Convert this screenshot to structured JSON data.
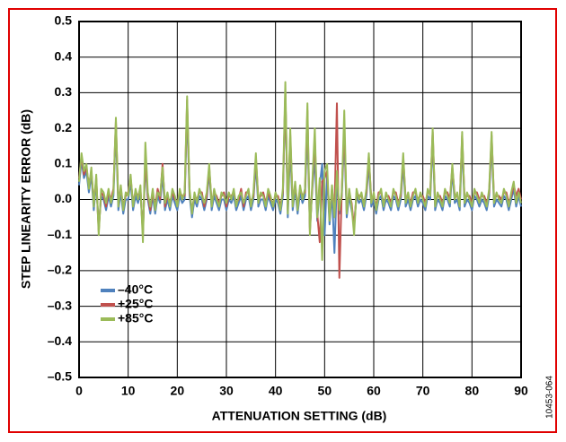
{
  "chart_data": {
    "type": "line",
    "x_label": "ATTENUATION SETTING (dB)",
    "y_label": "STEP LINEARITY ERROR (dB)",
    "figure_id": "10453-064",
    "xlim": [
      0,
      90
    ],
    "xticks": [
      0,
      10,
      20,
      30,
      40,
      50,
      60,
      70,
      80,
      90
    ],
    "ylim": [
      -0.5,
      0.5
    ],
    "yticks": [
      {
        "value": -0.5,
        "label": "–0.5"
      },
      {
        "value": -0.4,
        "label": "–0.4"
      },
      {
        "value": -0.3,
        "label": "–0.3"
      },
      {
        "value": -0.2,
        "label": "–0.2"
      },
      {
        "value": -0.1,
        "label": "–0.1"
      },
      {
        "value": 0,
        "label": "0.0"
      },
      0.1,
      0.2,
      0.3,
      0.4,
      0.5
    ],
    "grid": true,
    "legend": "lower-left",
    "x": [
      0,
      0.5,
      1,
      1.5,
      2,
      2.5,
      3,
      3.5,
      4,
      4.5,
      5,
      5.5,
      6,
      6.5,
      7,
      7.5,
      8,
      8.5,
      9,
      9.5,
      10,
      10.5,
      11,
      11.5,
      12,
      12.5,
      13,
      13.5,
      14,
      14.5,
      15,
      15.5,
      16,
      16.5,
      17,
      17.5,
      18,
      18.5,
      19,
      19.5,
      20,
      20.5,
      21,
      21.5,
      22,
      22.5,
      23,
      23.5,
      24,
      24.5,
      25,
      25.5,
      26,
      26.5,
      27,
      27.5,
      28,
      28.5,
      29,
      29.5,
      30,
      30.5,
      31,
      31.5,
      32,
      32.5,
      33,
      33.5,
      34,
      34.5,
      35,
      35.5,
      36,
      36.5,
      37,
      37.5,
      38,
      38.5,
      39,
      39.5,
      40,
      40.5,
      41,
      41.5,
      42,
      42.5,
      43,
      43.5,
      44,
      44.5,
      45,
      45.5,
      46,
      46.5,
      47,
      47.5,
      48,
      48.5,
      49,
      49.5,
      50,
      50.5,
      51,
      51.5,
      52,
      52.5,
      53,
      53.5,
      54,
      54.5,
      55,
      55.5,
      56,
      56.5,
      57,
      57.5,
      58,
      58.5,
      59,
      59.5,
      60,
      60.5,
      61,
      61.5,
      62,
      62.5,
      63,
      63.5,
      64,
      64.5,
      65,
      65.5,
      66,
      66.5,
      67,
      67.5,
      68,
      68.5,
      69,
      69.5,
      70,
      70.5,
      71,
      71.5,
      72,
      72.5,
      73,
      73.5,
      74,
      74.5,
      75,
      75.5,
      76,
      76.5,
      77,
      77.5,
      78,
      78.5,
      79,
      79.5,
      80,
      80.5,
      81,
      81.5,
      82,
      82.5,
      83,
      83.5,
      84,
      84.5,
      85,
      85.5,
      86,
      86.5,
      87,
      87.5,
      88,
      88.5,
      89,
      89.5,
      90
    ],
    "series": [
      {
        "name": "–40°C",
        "color": "#4f81bd",
        "values": [
          0.04,
          0.11,
          0.06,
          0.08,
          0.02,
          0.07,
          -0.03,
          0.05,
          -0.08,
          0.01,
          0,
          -0.03,
          0.01,
          -0.02,
          0.01,
          0.2,
          -0.03,
          0.02,
          -0.04,
          0,
          0,
          0.05,
          -0.03,
          0.01,
          -0.01,
          0.02,
          -0.09,
          0.1,
          0,
          -0.04,
          0.01,
          -0.04,
          0.01,
          -0.01,
          0.07,
          -0.03,
          0,
          -0.03,
          0.01,
          -0.01,
          -0.03,
          0.01,
          -0.01,
          0,
          0.25,
          0.01,
          -0.05,
          0,
          -0.02,
          0.01,
          0,
          -0.03,
          0,
          0.08,
          -0.03,
          0.01,
          -0.01,
          -0.03,
          0,
          0,
          -0.03,
          0,
          -0.01,
          0.01,
          -0.03,
          -0.01,
          0.01,
          -0.03,
          0,
          0.01,
          -0.03,
          0,
          0.1,
          -0.02,
          0,
          0,
          -0.03,
          0.01,
          -0.01,
          -0.03,
          0,
          -0.01,
          -0.04,
          0.01,
          0.3,
          -0.05,
          0.15,
          -0.03,
          0.03,
          -0.04,
          0.02,
          -0.01,
          0.01,
          0.2,
          -0.08,
          0.03,
          0.12,
          -0.06,
          0.04,
          0.1,
          -0.1,
          0.07,
          -0.07,
          0.02,
          -0.15,
          0.06,
          -0.04,
          0.01,
          0.18,
          -0.05,
          0.01,
          -0.03,
          -0.07,
          0.01,
          -0.01,
          0,
          -0.03,
          0.01,
          0.1,
          -0.02,
          0,
          -0.04,
          0,
          0.01,
          -0.03,
          0,
          -0.01,
          -0.03,
          0.01,
          0,
          -0.03,
          0,
          0.1,
          -0.02,
          0,
          -0.03,
          0,
          0.01,
          -0.02,
          0,
          -0.01,
          -0.03,
          0.01,
          0,
          0.17,
          -0.03,
          0,
          -0.01,
          -0.03,
          0.01,
          0,
          -0.02,
          0.08,
          -0.01,
          0,
          -0.03,
          0.16,
          -0.02,
          0,
          -0.01,
          -0.03,
          0.01,
          0,
          -0.02,
          0,
          -0.01,
          -0.03,
          0.01,
          0.16,
          -0.02,
          0,
          -0.01,
          -0.02,
          0.01,
          0,
          -0.03,
          0,
          0.03,
          -0.02,
          0.01,
          -0.02
        ]
      },
      {
        "name": "+25°C",
        "color": "#c0504d",
        "values": [
          0.06,
          0.12,
          0.07,
          0.09,
          0.04,
          0.08,
          -0.01,
          0.06,
          -0.09,
          0.02,
          0.01,
          -0.02,
          0.02,
          0,
          0.03,
          0.22,
          -0.01,
          0.03,
          -0.02,
          0.01,
          0.02,
          0.06,
          -0.01,
          0.02,
          0.01,
          0.03,
          -0.1,
          0.12,
          0.01,
          -0.03,
          0.02,
          -0.02,
          0.03,
          0,
          0.1,
          -0.02,
          0.01,
          -0.01,
          0.02,
          0,
          -0.01,
          0.02,
          0.01,
          0.01,
          0.28,
          0.02,
          -0.03,
          0.01,
          0,
          0.02,
          0.02,
          -0.02,
          0.01,
          0.09,
          -0.01,
          0.02,
          0.01,
          -0.01,
          0.01,
          0.02,
          -0.02,
          0.01,
          0.01,
          0.02,
          -0.01,
          0,
          0.03,
          -0.02,
          0.02,
          0.02,
          -0.01,
          0.01,
          0.12,
          0,
          0.01,
          0.02,
          -0.01,
          0.02,
          0,
          -0.01,
          0.01,
          0.01,
          -0.02,
          0.02,
          0.3,
          -0.03,
          0.18,
          -0.01,
          0.04,
          -0.02,
          0.03,
          0.01,
          0.02,
          0.25,
          -0.09,
          0.04,
          0.17,
          -0.04,
          -0.12,
          0.05,
          0.06,
          0.08,
          -0.05,
          0.03,
          -0.04,
          0.27,
          -0.22,
          0.03,
          0.2,
          -0.03,
          0.02,
          -0.01,
          -0.08,
          0.02,
          0.01,
          0.01,
          -0.01,
          0.02,
          0.12,
          0,
          0.01,
          -0.02,
          0.02,
          0.02,
          -0.01,
          0.01,
          0.01,
          -0.01,
          0.02,
          0.02,
          -0.01,
          0.01,
          0.12,
          0,
          0.01,
          -0.01,
          0.02,
          0.02,
          0,
          0.01,
          0.01,
          -0.01,
          0.02,
          0.02,
          0.19,
          -0.01,
          0.01,
          0.01,
          -0.01,
          0.02,
          0.02,
          0,
          0.09,
          0.01,
          0.01,
          -0.01,
          0.18,
          0,
          0.01,
          0.01,
          -0.01,
          0.02,
          0.02,
          0,
          0.01,
          0.01,
          -0.01,
          0.02,
          0.18,
          0,
          0.01,
          0.01,
          0,
          0.02,
          0.02,
          -0.01,
          0.01,
          0.04,
          0.01,
          0.03,
          0
        ]
      },
      {
        "name": "+85°C",
        "color": "#9bbb59",
        "values": [
          0.05,
          0.13,
          0.08,
          0.1,
          0.03,
          0.09,
          -0.02,
          0.07,
          -0.1,
          0.03,
          0.02,
          -0.01,
          0.03,
          -0.01,
          0.02,
          0.23,
          -0.02,
          0.04,
          -0.03,
          0.02,
          0.01,
          0.07,
          -0.02,
          0.03,
          0,
          0.04,
          -0.12,
          0.16,
          0.02,
          -0.02,
          0.03,
          -0.03,
          0.02,
          0.01,
          0.09,
          -0.01,
          0.02,
          -0.02,
          0.03,
          0.01,
          -0.02,
          0.03,
          0,
          0.02,
          0.29,
          0.03,
          -0.04,
          0.02,
          -0.01,
          0.03,
          0.01,
          -0.01,
          0.02,
          0.1,
          -0.02,
          0.03,
          0,
          -0.02,
          0.02,
          0.01,
          -0.01,
          0.02,
          0,
          0.03,
          -0.02,
          0.01,
          0.02,
          -0.01,
          0.01,
          0.03,
          -0.02,
          0.02,
          0.13,
          -0.01,
          0.02,
          0.01,
          -0.02,
          0.03,
          0.01,
          -0.02,
          0.02,
          0,
          -0.03,
          0.03,
          0.33,
          -0.04,
          0.2,
          -0.02,
          0.05,
          -0.03,
          0.04,
          0,
          0.03,
          0.27,
          -0.1,
          0.05,
          0.2,
          -0.05,
          0.06,
          -0.17,
          0.08,
          0.1,
          -0.06,
          0.04,
          -0.05,
          0.08,
          -0.03,
          0.02,
          0.25,
          -0.04,
          0.03,
          -0.02,
          -0.1,
          0.03,
          0,
          0.02,
          -0.02,
          0.03,
          0.13,
          -0.01,
          0.02,
          -0.03,
          0.01,
          0.03,
          -0.02,
          0.02,
          0,
          -0.02,
          0.03,
          0.01,
          -0.02,
          0.02,
          0.13,
          -0.01,
          0.02,
          -0.02,
          0.01,
          0.03,
          -0.01,
          0.02,
          0,
          -0.02,
          0.03,
          0.01,
          0.2,
          -0.02,
          0.02,
          0,
          -0.02,
          0.03,
          0.01,
          -0.01,
          0.1,
          0,
          0.02,
          -0.02,
          0.19,
          -0.01,
          0.02,
          0,
          -0.02,
          0.03,
          0.01,
          -0.01,
          0.02,
          0,
          -0.02,
          0.03,
          0.19,
          -0.01,
          0.02,
          0,
          -0.01,
          0.03,
          0.01,
          -0.02,
          0.02,
          0.05,
          -0.01,
          0.02,
          -0.01
        ]
      }
    ]
  }
}
